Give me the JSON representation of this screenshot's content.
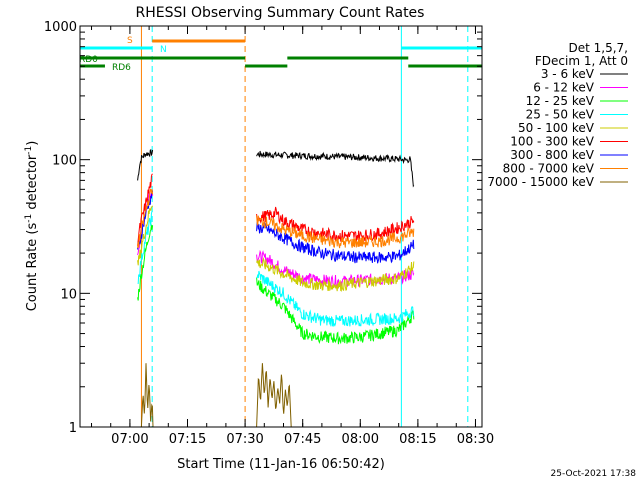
{
  "title": "RHESSI Observing Summary Count Rates",
  "chart_data": {
    "type": "line",
    "title": "RHESSI Observing Summary Count Rates",
    "xlabel": "Start Time (11-Jan-16 06:50:42)",
    "ylabel_main": "Count Rate (s",
    "ylabel_sup1": "-1",
    "ylabel_mid": " detector",
    "ylabel_sup2": "-1",
    "ylabel_end": ")",
    "yscale": "log",
    "ylim": [
      1,
      1000
    ],
    "xlim_minutes": [
      -3.0,
      101.7
    ],
    "xticks": [
      {
        "m": 10,
        "label": "07:00"
      },
      {
        "m": 25,
        "label": "07:15"
      },
      {
        "m": 40,
        "label": "07:30"
      },
      {
        "m": 55,
        "label": "07:45"
      },
      {
        "m": 70,
        "label": "08:00"
      },
      {
        "m": 85,
        "label": "08:15"
      },
      {
        "m": 100,
        "label": "08:30"
      }
    ],
    "yticks": [
      {
        "v": 1,
        "label": "1"
      },
      {
        "v": 10,
        "label": "10"
      },
      {
        "v": 100,
        "label": "100"
      },
      {
        "v": 1000,
        "label": "1000"
      }
    ],
    "legend": {
      "header": [
        "Det 1,5,7,",
        "FDecim 1, Att 0"
      ],
      "placement": "right"
    },
    "series": [
      {
        "name": "3 - 6 keV",
        "color": "#000000",
        "segments": [
          [
            [
              12,
              70
            ],
            [
              12.5,
              90
            ],
            [
              13,
              103
            ],
            [
              14,
              110
            ],
            [
              15,
              112
            ],
            [
              16,
              112
            ]
          ],
          [
            [
              43,
              110
            ],
            [
              50,
              108
            ],
            [
              60,
              106
            ],
            [
              70,
              104
            ],
            [
              80,
              101
            ],
            [
              82,
              99
            ],
            [
              83,
              101
            ],
            [
              84,
              60
            ]
          ]
        ]
      },
      {
        "name": "6 - 12 keV",
        "color": "#ff00ff",
        "segments": [
          [
            [
              12,
              20
            ],
            [
              13,
              30
            ],
            [
              14,
              40
            ],
            [
              15,
              55
            ],
            [
              16,
              60
            ]
          ],
          [
            [
              43,
              19
            ],
            [
              46,
              18
            ],
            [
              50,
              15
            ],
            [
              55,
              13
            ],
            [
              60,
              12.5
            ],
            [
              65,
              12.3
            ],
            [
              70,
              12.5
            ],
            [
              75,
              12.8
            ],
            [
              80,
              13
            ],
            [
              84,
              14
            ]
          ]
        ]
      },
      {
        "name": "12 - 25 keV",
        "color": "#00ff00",
        "segments": [
          [
            [
              12,
              9
            ],
            [
              13,
              14
            ],
            [
              14,
              20
            ],
            [
              15,
              28
            ],
            [
              16,
              35
            ]
          ],
          [
            [
              43,
              12
            ],
            [
              46,
              10
            ],
            [
              50,
              8
            ],
            [
              53,
              6
            ],
            [
              55,
              5
            ],
            [
              60,
              4.7
            ],
            [
              65,
              4.6
            ],
            [
              70,
              4.7
            ],
            [
              75,
              5
            ],
            [
              80,
              5.3
            ],
            [
              84,
              7
            ]
          ]
        ]
      },
      {
        "name": "25 - 50 keV",
        "color": "#00ffff",
        "segments": [
          [
            [
              12,
              12
            ],
            [
              13,
              18
            ],
            [
              14,
              25
            ],
            [
              15,
              32
            ],
            [
              16,
              40
            ]
          ],
          [
            [
              43,
              14
            ],
            [
              46,
              12
            ],
            [
              50,
              10
            ],
            [
              53,
              8
            ],
            [
              55,
              7
            ],
            [
              60,
              6.3
            ],
            [
              65,
              6.2
            ],
            [
              70,
              6.3
            ],
            [
              75,
              6.4
            ],
            [
              80,
              6.5
            ],
            [
              84,
              7.5
            ]
          ]
        ]
      },
      {
        "name": "50 - 100 keV",
        "color": "#cccc00",
        "segments": [
          [
            [
              12,
              16
            ],
            [
              13,
              22
            ],
            [
              14,
              30
            ],
            [
              15,
              40
            ],
            [
              16,
              50
            ]
          ],
          [
            [
              43,
              17
            ],
            [
              46,
              16
            ],
            [
              50,
              14
            ],
            [
              55,
              12
            ],
            [
              60,
              11.5
            ],
            [
              65,
              11.5
            ],
            [
              70,
              12
            ],
            [
              75,
              12.5
            ],
            [
              80,
              13
            ],
            [
              84,
              16
            ]
          ]
        ]
      },
      {
        "name": "100 - 300 keV",
        "color": "#ff0000",
        "segments": [
          [
            [
              12,
              25
            ],
            [
              13,
              35
            ],
            [
              14,
              45
            ],
            [
              15,
              60
            ],
            [
              16,
              75
            ]
          ],
          [
            [
              43,
              37
            ],
            [
              46,
              38
            ],
            [
              48,
              40
            ],
            [
              50,
              35
            ],
            [
              55,
              30
            ],
            [
              60,
              28
            ],
            [
              65,
              27
            ],
            [
              70,
              27
            ],
            [
              75,
              28
            ],
            [
              80,
              31
            ],
            [
              84,
              35
            ]
          ]
        ]
      },
      {
        "name": "300 - 800 keV",
        "color": "#0000ff",
        "segments": [
          [
            [
              12,
              20
            ],
            [
              13,
              28
            ],
            [
              14,
              38
            ],
            [
              15,
              48
            ],
            [
              16,
              58
            ]
          ],
          [
            [
              43,
              31
            ],
            [
              46,
              30
            ],
            [
              50,
              26
            ],
            [
              55,
              22
            ],
            [
              60,
              20
            ],
            [
              65,
              19
            ],
            [
              70,
              18.5
            ],
            [
              75,
              18.5
            ],
            [
              80,
              19
            ],
            [
              84,
              23
            ]
          ]
        ]
      },
      {
        "name": "800 - 7000 keV",
        "color": "#ff8000",
        "segments": [
          [
            [
              12,
              22
            ],
            [
              13,
              30
            ],
            [
              14,
              40
            ],
            [
              15,
              52
            ],
            [
              16,
              62
            ]
          ],
          [
            [
              43,
              35
            ],
            [
              46,
              34
            ],
            [
              50,
              30
            ],
            [
              55,
              27
            ],
            [
              60,
              25
            ],
            [
              65,
              24
            ],
            [
              70,
              24
            ],
            [
              75,
              24.5
            ],
            [
              80,
              26
            ],
            [
              84,
              29
            ]
          ]
        ]
      },
      {
        "name": "7000 - 15000 keV",
        "color": "#806000",
        "segments": [
          [
            [
              13,
              1.0
            ],
            [
              13.4,
              1.8
            ],
            [
              13.8,
              1.2
            ],
            [
              14.2,
              3.0
            ],
            [
              14.6,
              1.3
            ],
            [
              15,
              2.2
            ],
            [
              15.4,
              1.1
            ],
            [
              15.8,
              1.6
            ],
            [
              16,
              1.0
            ]
          ],
          [
            [
              43,
              1.0
            ],
            [
              43.5,
              2.5
            ],
            [
              44,
              1.5
            ],
            [
              44.5,
              3.0
            ],
            [
              45,
              1.7
            ],
            [
              45.5,
              2.8
            ],
            [
              46,
              1.4
            ],
            [
              46.5,
              2.4
            ],
            [
              47,
              1.6
            ],
            [
              47.5,
              2.2
            ],
            [
              48,
              1.3
            ],
            [
              48.5,
              2.0
            ],
            [
              49,
              1.5
            ],
            [
              49.5,
              2.6
            ],
            [
              50,
              1.2
            ],
            [
              50.5,
              1.9
            ],
            [
              51,
              1.4
            ],
            [
              51.5,
              2.2
            ],
            [
              52,
              1.0
            ]
          ]
        ]
      }
    ],
    "bars": [
      {
        "label": "S",
        "color": "#ff8000",
        "m0": 15.8,
        "m1": 40.0,
        "level": "top"
      },
      {
        "label": "N",
        "color": "#00ffff",
        "m0": -3.0,
        "m1": 15.8,
        "level": "n"
      },
      {
        "label": "N",
        "color": "#00ffff",
        "m0": 80.7,
        "m1": 101.7,
        "level": "n"
      },
      {
        "label": "RD0",
        "color": "#008000",
        "m0": -3.0,
        "m1": 40.0,
        "level": "rd0"
      },
      {
        "label": "RD0",
        "color": "#008000",
        "m0": 51.0,
        "m1": 82.5,
        "level": "rd0"
      },
      {
        "label": "RD6",
        "color": "#008000",
        "m0": -3.0,
        "m1": 3.5,
        "level": "rd6"
      },
      {
        "label": "RD6",
        "color": "#008000",
        "m0": 40.0,
        "m1": 51.0,
        "level": "rd6"
      },
      {
        "label": "RD6",
        "color": "#008000",
        "m0": 82.5,
        "m1": 101.7,
        "level": "rd6"
      }
    ],
    "vlines": [
      {
        "m": -3.0,
        "color": "#00ffff",
        "dashed": false
      },
      {
        "m": 15.8,
        "color": "#00ffff",
        "dashed": true
      },
      {
        "m": 80.7,
        "color": "#00ffff",
        "dashed": false
      },
      {
        "m": 98.0,
        "color": "#00ffff",
        "dashed": true
      },
      {
        "m": 13.0,
        "color": "#ff8000",
        "dashed": false
      },
      {
        "m": 40.0,
        "color": "#ff8000",
        "dashed": true
      }
    ]
  },
  "timestamp": "25-Oct-2021 17:38"
}
